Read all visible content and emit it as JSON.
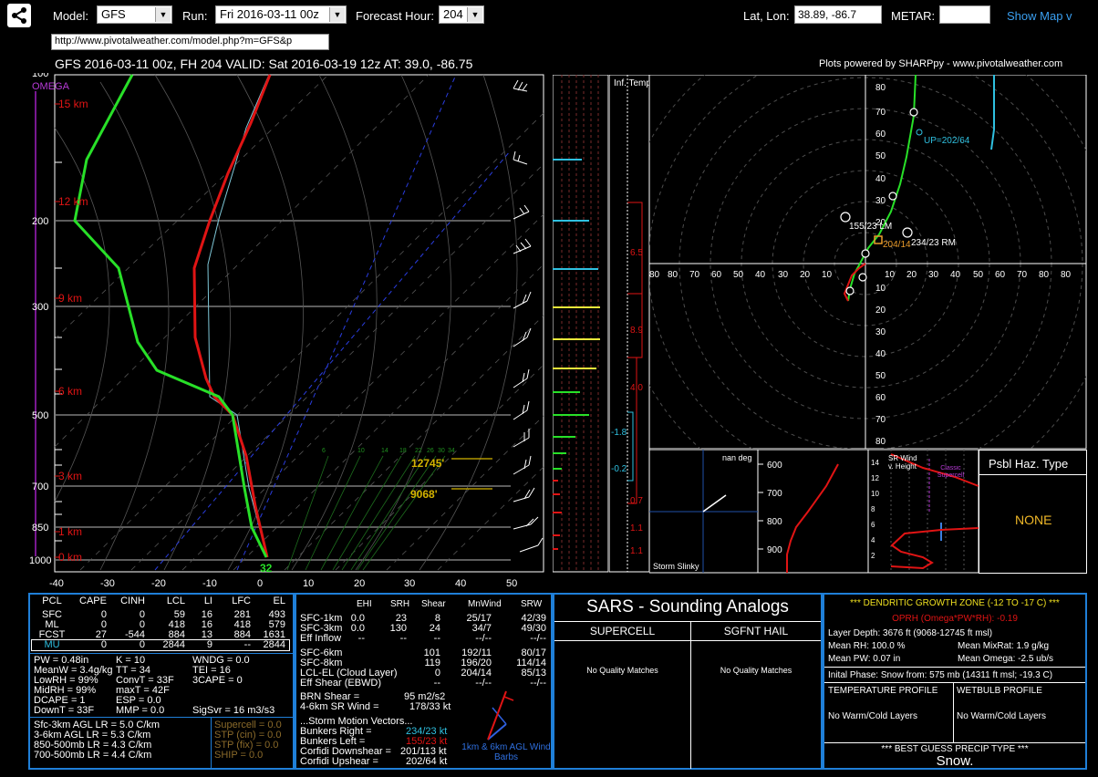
{
  "toolbar": {
    "model_label": "Model:",
    "model_value": "GFS",
    "run_label": "Run:",
    "run_value": "Fri 2016-03-11 00z",
    "hour_label": "Forecast Hour:",
    "hour_value": "204",
    "latlon_label": "Lat, Lon:",
    "latlon_value": "38.89, -86.7",
    "metar_label": "METAR:",
    "metar_value": "",
    "show_map": "Show Map",
    "url": "http://www.pivotalweather.com/model.php?m=GFS&p"
  },
  "header": {
    "title": "GFS 2016-03-11 00z, FH 204   VALID: Sat 2016-03-19 12z   AT: 39.0, -86.75",
    "credit": "Plots powered by SHARPpy - www.pivotalweather.com"
  },
  "skewt": {
    "omega_label": "OMEGA",
    "pressure_ticks": [
      "100",
      "200",
      "300",
      "500",
      "700",
      "850",
      "1000"
    ],
    "height_ticks": [
      "15 km",
      "12 km",
      "9 km",
      "6 km",
      "3 km",
      "1 km",
      "0 km"
    ],
    "temp_ticks": [
      "-40",
      "-30",
      "-20",
      "-10",
      "0",
      "10",
      "20",
      "30",
      "40",
      "50"
    ],
    "dgz_top": "12745'",
    "dgz_bottom": "9068'",
    "sfc_temp": "32",
    "mixing_ratio_labels": [
      "6",
      "10",
      "14",
      "18",
      "22",
      "26",
      "30",
      "34"
    ]
  },
  "inferred_temp": {
    "title": "Inf. Temp.",
    "values": [
      "6.5",
      "8.9",
      "4.0",
      "-1.8",
      "-0.2",
      "0.7",
      "1.1",
      "1.1"
    ]
  },
  "hodograph": {
    "rings": [
      "10",
      "20",
      "30",
      "40",
      "50",
      "60",
      "70",
      "80"
    ],
    "up_label": "UP=202/64",
    "lm_label": "155/23 LM",
    "rm_label": "234/23 RM",
    "mean_label": "204/14"
  },
  "slinky": {
    "label": "Storm Slinky",
    "nan": "nan deg"
  },
  "theta": {
    "ticks": [
      "600",
      "700",
      "800",
      "900"
    ]
  },
  "srwind": {
    "label": "SR Wind v. Height",
    "classic": "Classic Supercell",
    "ticks": [
      "14",
      "12",
      "10",
      "8",
      "6",
      "4",
      "2"
    ]
  },
  "hazard": {
    "title": "Psbl Haz. Type",
    "value": "NONE"
  },
  "parcels": {
    "headers": [
      "PCL",
      "CAPE",
      "CINH",
      "LCL",
      "LI",
      "LFC",
      "EL"
    ],
    "rows": [
      [
        "SFC",
        "0",
        "0",
        "59",
        "16",
        "281",
        "493"
      ],
      [
        "ML",
        "0",
        "0",
        "418",
        "16",
        "418",
        "579"
      ],
      [
        "FCST",
        "27",
        "-544",
        "884",
        "13",
        "884",
        "1631"
      ],
      [
        "MU",
        "0",
        "0",
        "2844",
        "9",
        "--",
        "2844"
      ]
    ]
  },
  "indices": [
    [
      "PW = 0.48in",
      "K = 10",
      "WNDG = 0.0"
    ],
    [
      "MeanW = 3.4g/kg",
      "TT = 34",
      "TEI = 16"
    ],
    [
      "LowRH = 99%",
      "ConvT = 33F",
      "3CAPE = 0"
    ],
    [
      "MidRH = 99%",
      "maxT = 42F",
      ""
    ],
    [
      "DCAPE = 1",
      "ESP = 0.0",
      ""
    ],
    [
      "DownT = 33F",
      "MMP = 0.0",
      "SigSvr = 16 m3/s3"
    ]
  ],
  "lapse": [
    "Sfc-3km AGL LR = 5.0 C/km",
    "3-6km AGL LR = 5.3 C/km",
    "850-500mb LR = 4.3 C/km",
    "700-500mb LR = 4.4 C/km"
  ],
  "composite": [
    "Supercell = 0.0",
    "STP (cin) = 0.0",
    "STP (fix) = 0.0",
    "SHIP = 0.0"
  ],
  "kinematics": {
    "headers": [
      "EHI",
      "SRH",
      "Shear",
      "MnWind",
      "SRW"
    ],
    "rows": [
      [
        "SFC-1km",
        "0.0",
        "23",
        "8",
        "25/17",
        "42/39"
      ],
      [
        "SFC-3km",
        "0.0",
        "130",
        "24",
        "34/7",
        "49/30"
      ],
      [
        "Eff Inflow",
        "--",
        "--",
        "--",
        "--/--",
        "--/--"
      ],
      [
        "SFC-6km",
        "",
        "",
        "101",
        "192/11",
        "80/17"
      ],
      [
        "SFC-8km",
        "",
        "",
        "119",
        "196/20",
        "114/14"
      ],
      [
        "LCL-EL (Cloud Layer)",
        "",
        "",
        "0",
        "204/14",
        "85/13"
      ],
      [
        "Eff Shear (EBWD)",
        "",
        "",
        "--",
        "--/--",
        "--/--"
      ]
    ],
    "brn": "BRN Shear =",
    "brn_val": "95 m2/s2",
    "srw46": "4-6km SR Wind =",
    "srw46_val": "178/33 kt",
    "motion_title": "...Storm Motion Vectors...",
    "bunkers_right": "Bunkers Right =",
    "bunkers_right_val": "234/23 kt",
    "bunkers_left": "Bunkers Left =",
    "bunkers_left_val": "155/23 kt",
    "corfidi_down": "Corfidi Downshear =",
    "corfidi_down_val": "201/113 kt",
    "corfidi_up": "Corfidi Upshear =",
    "corfidi_up_val": "202/64 kt",
    "barbs_label": "1km & 6km AGL Wind Barbs"
  },
  "sars": {
    "title": "SARS - Sounding Analogs",
    "supercell": "SUPERCELL",
    "hail": "SGFNT HAIL",
    "supercell_msg": "No Quality Matches",
    "hail_msg": "No Quality Matches"
  },
  "dgz": {
    "title": "*** DENDRITIC GROWTH ZONE (-12 TO -17 C) ***",
    "oprh": "OPRH (Omega*PW*RH): -0.19",
    "depth": "Layer Depth: 3676 ft (9068-12745 ft msl)",
    "mean_rh": "Mean RH: 100.0 %",
    "mean_mix": "Mean MixRat: 1.9 g/kg",
    "mean_pw": "Mean PW: 0.07 in",
    "mean_omega": "Mean Omega: -2.5 ub/s",
    "initial_phase": "Inital Phase: Snow from: 575 mb (14311 ft msl; -19.3 C)",
    "temp_profile": "TEMPERATURE PROFILE",
    "wetbulb_profile": "WETBULB PROFILE",
    "temp_msg": "No Warm/Cold Layers",
    "wetbulb_msg": "No Warm/Cold Layers",
    "precip_title": "*** BEST GUESS PRECIP TYPE ***",
    "precip_value": "Snow."
  }
}
